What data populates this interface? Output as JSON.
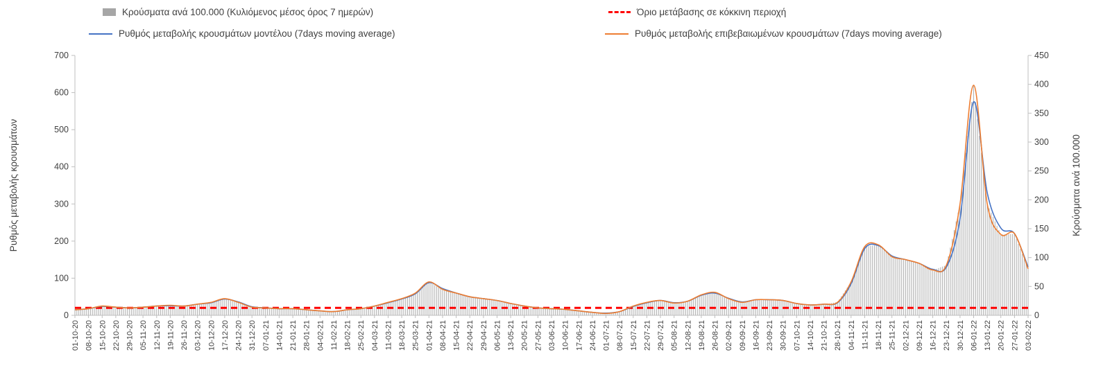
{
  "legend": {
    "bars_label": "Κρούσματα ανά 100.000 (Κυλιόμενος μέσος όρος 7 ημερών)",
    "threshold_label": "Όριο μετάβασης σε κόκκινη περιοχή",
    "model_label": "Ρυθμός μεταβολής κρουσμάτων μοντέλου (7days moving average)",
    "confirmed_label": "Ρυθμός μεταβολής επιβεβαιωμένων κρουσμάτων (7days moving average)"
  },
  "axes": {
    "left_title": "Ρυθμός μεταβολής κρουσμάτων",
    "right_title": "Κρούσματα ανά 100.000",
    "left_ticks": [
      0,
      100,
      200,
      300,
      400,
      500,
      600,
      700
    ],
    "right_ticks": [
      0,
      50,
      100,
      150,
      200,
      250,
      300,
      350,
      400,
      450
    ]
  },
  "colors": {
    "bars": "#b3b3b3",
    "model_line": "#4472c4",
    "confirmed_line": "#ed7d31",
    "threshold": "#ff0000",
    "axis": "#bfbfbf",
    "text": "#404040"
  },
  "chart_data": {
    "type": "line",
    "note": "combo chart: daily gray bars (right axis) + two 7-day moving-average lines (left axis) + red dashed threshold",
    "grid": false,
    "legend_position": "top",
    "left_ylim": [
      0,
      700
    ],
    "right_ylim": [
      0,
      450
    ],
    "categories": [
      "01-10-20",
      "08-10-20",
      "15-10-20",
      "22-10-20",
      "29-10-20",
      "05-11-20",
      "12-11-20",
      "19-11-20",
      "26-11-20",
      "03-12-20",
      "10-12-20",
      "17-12-20",
      "24-12-20",
      "31-12-20",
      "07-01-21",
      "14-01-21",
      "21-01-21",
      "28-01-21",
      "04-02-21",
      "11-02-21",
      "18-02-21",
      "25-02-21",
      "04-03-21",
      "11-03-21",
      "18-03-21",
      "25-03-21",
      "01-04-21",
      "08-04-21",
      "15-04-21",
      "22-04-21",
      "29-04-21",
      "06-05-21",
      "13-05-21",
      "20-05-21",
      "27-05-21",
      "03-06-21",
      "10-06-21",
      "17-06-21",
      "24-06-21",
      "01-07-21",
      "08-07-21",
      "15-07-21",
      "22-07-21",
      "29-07-21",
      "05-08-21",
      "12-08-21",
      "19-08-21",
      "26-08-21",
      "02-09-21",
      "09-09-21",
      "16-09-21",
      "23-09-21",
      "30-09-21",
      "07-10-21",
      "14-10-21",
      "21-10-21",
      "28-10-21",
      "04-11-21",
      "11-11-21",
      "18-11-21",
      "25-11-21",
      "02-12-21",
      "09-12-21",
      "16-12-21",
      "23-12-21",
      "30-12-21",
      "06-01-22",
      "13-01-22",
      "20-01-22",
      "27-01-22",
      "03-02-22"
    ],
    "series": [
      {
        "name": "Κρούσματα ανά 100.000 (Κυλιόμενος μέσος όρος 7 ημερών)",
        "kind": "bar",
        "axis": "right",
        "color": "#b3b3b3",
        "values": [
          10,
          12,
          16,
          14,
          13,
          14,
          16,
          17,
          16,
          19,
          23,
          29,
          23,
          14,
          13,
          12,
          12,
          10,
          8,
          6,
          10,
          12,
          16,
          23,
          29,
          39,
          58,
          45,
          39,
          32,
          29,
          26,
          21,
          16,
          13,
          12,
          10,
          8,
          5,
          3,
          6,
          16,
          23,
          26,
          21,
          24,
          35,
          40,
          29,
          23,
          27,
          27,
          26,
          21,
          18,
          19,
          23,
          58,
          119,
          122,
          102,
          96,
          90,
          78,
          87,
          193,
          399,
          193,
          140,
          141,
          80
        ]
      },
      {
        "name": "Ρυθμός μεταβολής κρουσμάτων μοντέλου (7days moving average)",
        "kind": "line",
        "axis": "left",
        "color": "#4472c4",
        "values": [
          15,
          18,
          24,
          22,
          20,
          22,
          25,
          26,
          25,
          30,
          34,
          44,
          36,
          23,
          20,
          18,
          18,
          15,
          12,
          10,
          15,
          18,
          25,
          34,
          44,
          58,
          88,
          72,
          60,
          50,
          45,
          40,
          32,
          25,
          20,
          18,
          16,
          12,
          8,
          6,
          10,
          24,
          34,
          40,
          34,
          38,
          54,
          60,
          46,
          36,
          42,
          42,
          40,
          32,
          28,
          30,
          34,
          85,
          180,
          188,
          160,
          150,
          140,
          124,
          130,
          260,
          575,
          330,
          235,
          220,
          130
        ]
      },
      {
        "name": "Ρυθμός μεταβολής επιβεβαιωμένων κρουσμάτων (7days moving average)",
        "kind": "line",
        "axis": "left",
        "color": "#ed7d31",
        "values": [
          15,
          18,
          25,
          22,
          20,
          22,
          25,
          27,
          25,
          30,
          35,
          45,
          35,
          22,
          20,
          18,
          18,
          15,
          12,
          10,
          15,
          18,
          25,
          35,
          45,
          60,
          90,
          70,
          60,
          50,
          45,
          40,
          32,
          25,
          20,
          18,
          16,
          12,
          8,
          5,
          10,
          25,
          35,
          40,
          33,
          38,
          55,
          62,
          45,
          35,
          42,
          42,
          40,
          32,
          28,
          30,
          35,
          90,
          185,
          190,
          158,
          150,
          140,
          122,
          135,
          300,
          620,
          300,
          218,
          220,
          125
        ]
      },
      {
        "name": "Όριο μετάβασης σε κόκκινη περιοχή",
        "kind": "threshold",
        "axis": "left",
        "color": "#ff0000",
        "value": 20
      }
    ]
  }
}
